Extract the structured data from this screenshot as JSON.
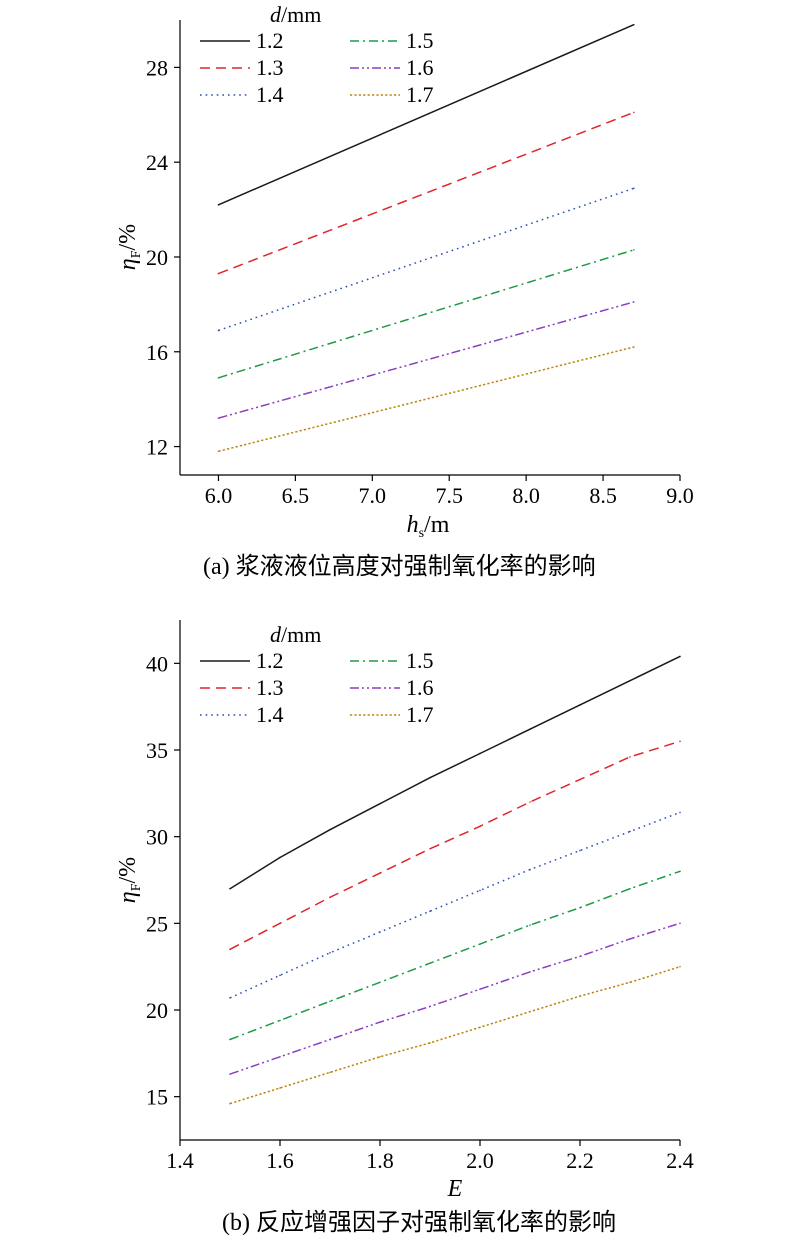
{
  "chart_data": [
    {
      "type": "line",
      "panel": "a",
      "ylabel_sym": "η",
      "ylabel_sub": "F",
      "ylabel_unit": "/%",
      "xlabel_sym": "h",
      "xlabel_sub": "s",
      "xlabel_unit": "/m",
      "caption": "(a) 浆液液位高度对强制氧化率的影响",
      "xlim": [
        5.75,
        9.0
      ],
      "ylim": [
        10.8,
        30.0
      ],
      "xticks": [
        6.0,
        6.5,
        7.0,
        7.5,
        8.0,
        8.5,
        9.0
      ],
      "xtick_labels": [
        "6.0",
        "6.5",
        "7.0",
        "7.5",
        "8.0",
        "8.5",
        "9.0"
      ],
      "yticks": [
        12,
        16,
        20,
        24,
        28
      ],
      "ytick_labels": [
        "12",
        "16",
        "20",
        "24",
        "28"
      ],
      "legend_title_sym": "d",
      "legend_title_unit": "/mm",
      "legend_position": "top-left",
      "x": [
        6.0,
        8.7
      ],
      "series": [
        {
          "name": "1.2",
          "values": [
            22.2,
            29.8
          ],
          "color": "#1a1a1a",
          "dash": "solid"
        },
        {
          "name": "1.3",
          "values": [
            19.3,
            26.1
          ],
          "color": "#e0252b",
          "dash": "dash"
        },
        {
          "name": "1.4",
          "values": [
            16.9,
            22.9
          ],
          "color": "#2b4fb5",
          "dash": "dot"
        },
        {
          "name": "1.5",
          "values": [
            14.9,
            20.3
          ],
          "color": "#1f9a46",
          "dash": "dashdot"
        },
        {
          "name": "1.6",
          "values": [
            13.2,
            18.1
          ],
          "color": "#8a3fc0",
          "dash": "dashdotdot"
        },
        {
          "name": "1.7",
          "values": [
            11.8,
            16.2
          ],
          "color": "#b8860b",
          "dash": "shortdot"
        }
      ]
    },
    {
      "type": "line",
      "panel": "b",
      "ylabel_sym": "η",
      "ylabel_sub": "F",
      "ylabel_unit": "/%",
      "xlabel_sym": "E",
      "xlabel_sub": "",
      "xlabel_unit": "",
      "caption": "(b) 反应增强因子对强制氧化率的影响",
      "xlim": [
        1.4,
        2.4
      ],
      "ylim": [
        12.5,
        42.5
      ],
      "xticks": [
        1.4,
        1.6,
        1.8,
        2.0,
        2.2,
        2.4
      ],
      "xtick_labels": [
        "1.4",
        "1.6",
        "1.8",
        "2.0",
        "2.2",
        "2.4"
      ],
      "yticks": [
        15,
        20,
        25,
        30,
        35,
        40
      ],
      "ytick_labels": [
        "15",
        "20",
        "25",
        "30",
        "35",
        "40"
      ],
      "legend_title_sym": "d",
      "legend_title_unit": "/mm",
      "legend_position": "top-left",
      "x": [
        1.5,
        1.6,
        1.7,
        1.8,
        1.9,
        2.0,
        2.1,
        2.2,
        2.3,
        2.4
      ],
      "series": [
        {
          "name": "1.2",
          "values": [
            27.0,
            28.8,
            30.4,
            31.9,
            33.4,
            34.8,
            36.2,
            37.6,
            39.0,
            40.4
          ],
          "color": "#1a1a1a",
          "dash": "solid"
        },
        {
          "name": "1.3",
          "values": [
            23.5,
            25.0,
            26.5,
            27.9,
            29.3,
            30.6,
            32.0,
            33.3,
            34.6,
            35.5
          ],
          "color": "#e0252b",
          "dash": "dash"
        },
        {
          "name": "1.4",
          "values": [
            20.7,
            22.0,
            23.3,
            24.5,
            25.7,
            26.9,
            28.1,
            29.2,
            30.3,
            31.4
          ],
          "color": "#2b4fb5",
          "dash": "dot"
        },
        {
          "name": "1.5",
          "values": [
            18.3,
            19.4,
            20.5,
            21.6,
            22.7,
            23.8,
            24.9,
            25.9,
            27.0,
            28.0
          ],
          "color": "#1f9a46",
          "dash": "dashdot"
        },
        {
          "name": "1.6",
          "values": [
            16.3,
            17.3,
            18.3,
            19.3,
            20.2,
            21.2,
            22.2,
            23.1,
            24.1,
            25.0
          ],
          "color": "#8a3fc0",
          "dash": "dashdotdot"
        },
        {
          "name": "1.7",
          "values": [
            14.6,
            15.5,
            16.4,
            17.3,
            18.1,
            19.0,
            19.9,
            20.8,
            21.6,
            22.5
          ],
          "color": "#b8860b",
          "dash": "shortdot"
        }
      ]
    }
  ]
}
